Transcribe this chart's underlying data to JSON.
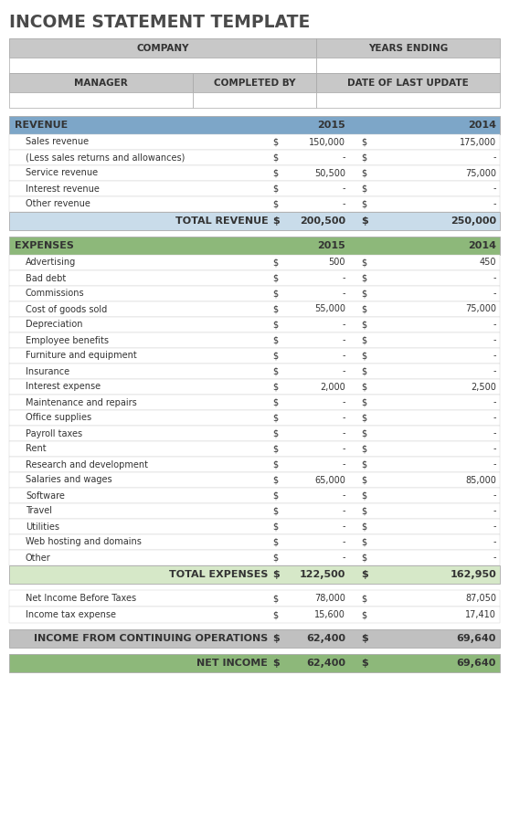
{
  "title": "INCOME STATEMENT TEMPLATE",
  "title_color": "#4a4a4a",
  "bg_color": "#ffffff",
  "revenue_header": {
    "label": "REVENUE",
    "col2015": "2015",
    "col2014": "2014",
    "bg": "#7da6c8"
  },
  "revenue_rows": [
    {
      "label": "Sales revenue",
      "val2015": "150,000",
      "val2014": "175,000"
    },
    {
      "label": "(Less sales returns and allowances)",
      "val2015": "-",
      "val2014": "-"
    },
    {
      "label": "Service revenue",
      "val2015": "50,500",
      "val2014": "75,000"
    },
    {
      "label": "Interest revenue",
      "val2015": "-",
      "val2014": "-"
    },
    {
      "label": "Other revenue",
      "val2015": "-",
      "val2014": "-"
    }
  ],
  "total_revenue": {
    "label": "TOTAL REVENUE",
    "val2015": "200,500",
    "val2014": "250,000",
    "bg": "#c9dcea"
  },
  "expenses_header": {
    "label": "EXPENSES",
    "col2015": "2015",
    "col2014": "2014",
    "bg": "#8db87a"
  },
  "expense_rows": [
    {
      "label": "Advertising",
      "val2015": "500",
      "val2014": "450"
    },
    {
      "label": "Bad debt",
      "val2015": "-",
      "val2014": "-"
    },
    {
      "label": "Commissions",
      "val2015": "-",
      "val2014": "-"
    },
    {
      "label": "Cost of goods sold",
      "val2015": "55,000",
      "val2014": "75,000"
    },
    {
      "label": "Depreciation",
      "val2015": "-",
      "val2014": "-"
    },
    {
      "label": "Employee benefits",
      "val2015": "-",
      "val2014": "-"
    },
    {
      "label": "Furniture and equipment",
      "val2015": "-",
      "val2014": "-"
    },
    {
      "label": "Insurance",
      "val2015": "-",
      "val2014": "-"
    },
    {
      "label": "Interest expense",
      "val2015": "2,000",
      "val2014": "2,500"
    },
    {
      "label": "Maintenance and repairs",
      "val2015": "-",
      "val2014": "-"
    },
    {
      "label": "Office supplies",
      "val2015": "-",
      "val2014": "-"
    },
    {
      "label": "Payroll taxes",
      "val2015": "-",
      "val2014": "-"
    },
    {
      "label": "Rent",
      "val2015": "-",
      "val2014": "-"
    },
    {
      "label": "Research and development",
      "val2015": "-",
      "val2014": "-"
    },
    {
      "label": "Salaries and wages",
      "val2015": "65,000",
      "val2014": "85,000"
    },
    {
      "label": "Software",
      "val2015": "-",
      "val2014": "-"
    },
    {
      "label": "Travel",
      "val2015": "-",
      "val2014": "-"
    },
    {
      "label": "Utilities",
      "val2015": "-",
      "val2014": "-"
    },
    {
      "label": "Web hosting and domains",
      "val2015": "-",
      "val2014": "-"
    },
    {
      "label": "Other",
      "val2015": "-",
      "val2014": "-"
    }
  ],
  "total_expenses": {
    "label": "TOTAL EXPENSES",
    "val2015": "122,500",
    "val2014": "162,950",
    "bg": "#d6e8c8"
  },
  "net_rows": [
    {
      "label": "Net Income Before Taxes",
      "val2015": "78,000",
      "val2014": "87,050"
    },
    {
      "label": "Income tax expense",
      "val2015": "15,600",
      "val2014": "17,410"
    }
  ],
  "income_from_ops": {
    "label": "INCOME FROM CONTINUING OPERATIONS",
    "val2015": "62,400",
    "val2014": "69,640",
    "bg": "#c0c0c0"
  },
  "net_income": {
    "label": "NET INCOME",
    "val2015": "62,400",
    "val2014": "69,640",
    "bg": "#8db87a"
  },
  "header_bg": "#c8c8c8",
  "border_color": "#aaaaaa",
  "text_dark": "#333333"
}
